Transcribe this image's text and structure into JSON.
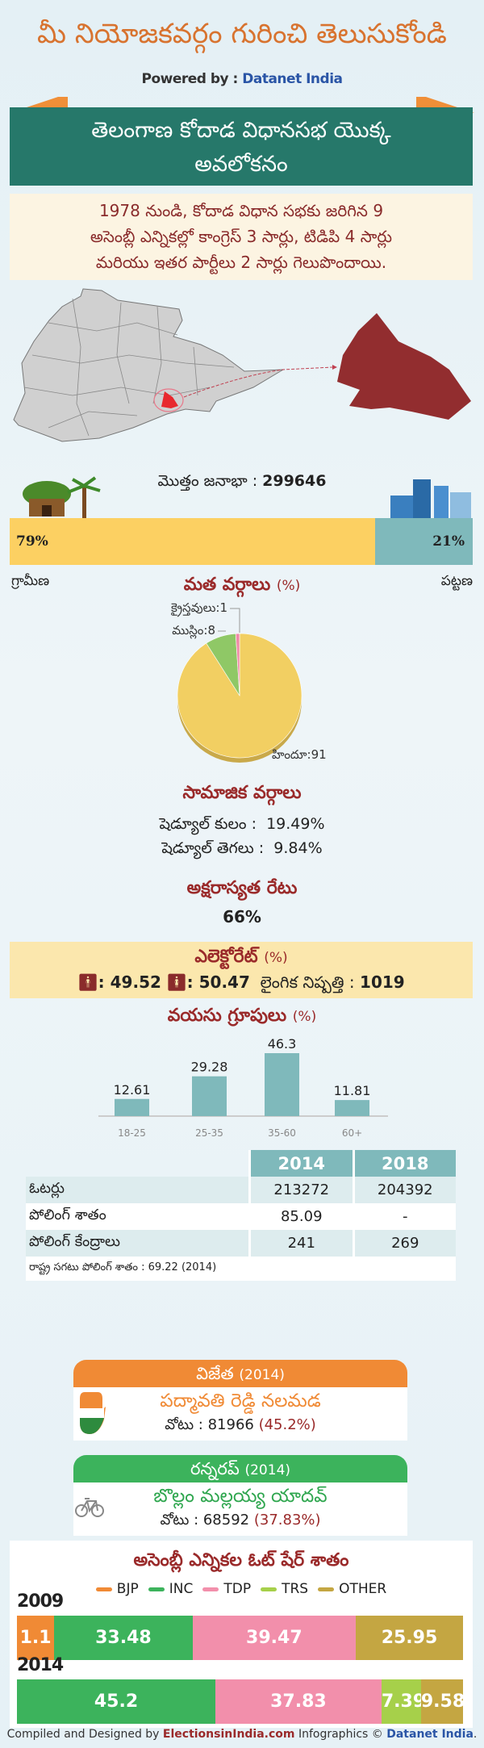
{
  "header": {
    "title": "మీ నియోజకవర్గం గురించి తెలుసుకోండి",
    "powered_label": "Powered by : ",
    "powered_brand": "Datanet India"
  },
  "banner": {
    "line1": "తెలంగాణ కోదాడ విధానసభ యొక్క",
    "line2": "అవలోకనం"
  },
  "intro": {
    "line1": "1978 నుండి, కోదాడ విధాన సభకు జరిగిన 9",
    "line2": "అసెంబ్లీ ఎన్నికల్లో కాంగ్రెస్ 3 సార్లు, టిడిపి 4 సార్లు",
    "line3": "మరియు ఇతర పార్టీలు 2 సార్లు గెలుపొందాయి."
  },
  "map": {
    "state_color": "#d0d0d0",
    "constituency_color": "#e8282d",
    "zoom_color": "#922d2f"
  },
  "population": {
    "label": "మొత్తం జనాభా : ",
    "value": "299646",
    "rural_pct": 79,
    "urban_pct": 21,
    "rural_text": "79%",
    "urban_text": "21%",
    "rural_label": "గ్రామీణ",
    "urban_label": "పట్టణ",
    "rural_color": "#fcd062",
    "urban_color": "#7fb9bb"
  },
  "religion": {
    "title": "మత వర్గాలు",
    "unit": "(%)"
  },
  "social": {
    "title": "సామాజిక వర్గాలు",
    "sc_label": "షెడ్యూల్ కులం :",
    "sc_value": "19.49%",
    "st_label": "షెడ్యూల్ తెగలు :",
    "st_value": "9.84%"
  },
  "literacy": {
    "title": "అక్షరాస్యత రేటు",
    "value": "66%"
  },
  "electorate": {
    "title": "ఎలెక్టోరేట్",
    "unit": "(%)",
    "male": ": 49.52",
    "female": ": 50.47",
    "ratio_label": "లైంగిక నిష్పత్తి :",
    "ratio_value": "1019"
  },
  "age": {
    "title": "వయసు గ్రూపులు",
    "unit": "(%)"
  },
  "table": {
    "headers": [
      "2014",
      "2018"
    ],
    "rows": [
      {
        "label": "ఓటర్లు",
        "v2014": "213272",
        "v2018": "204392"
      },
      {
        "label": "పోలింగ్ శాతం",
        "v2014": "85.09",
        "v2018": "-"
      },
      {
        "label": "పోలింగ్ కేంద్రాలు",
        "v2014": "241",
        "v2018": "269"
      }
    ],
    "note": "రాష్ట్ర సగటు పోలింగ్ శాతం : 69.22 (2014)"
  },
  "winner": {
    "title": "విజేత",
    "year": "(2014)",
    "name": "పద్మావతి రెడ్డి నలమడ",
    "votes_label": "వోటు : 81966 ",
    "votes_pct": "(45.2%)",
    "color": "#f08a35",
    "name_color": "#f08a35"
  },
  "runnerup": {
    "title": "రన్నరప్",
    "year": "(2014)",
    "name": "బొల్లం మల్లయ్య యాదవ్",
    "votes_label": "వోటు : 68592 ",
    "votes_pct": "(37.83%)",
    "color": "#3cb35c",
    "name_color": "#2ea64e"
  },
  "footer": {
    "prefix": "Compiled and Designed by ",
    "brand1": "ElectionsinIndia.com",
    "mid": " Infographics © ",
    "brand2": "Datanet India",
    "end": "."
  },
  "chart_data": [
    {
      "type": "pie",
      "title": "మత వర్గాలు (%)",
      "slices": [
        {
          "label": "హిందూ",
          "value": 91,
          "color": "#f2cf62"
        },
        {
          "label": "ముస్లిం",
          "value": 8,
          "color": "#8fc866"
        },
        {
          "label": "క్రైస్తవులు",
          "value": 1,
          "color": "#f08aa8"
        }
      ]
    },
    {
      "type": "bar",
      "title": "వయసు గ్రూపులు (%)",
      "categories": [
        "18-25",
        "25-35",
        "35-60",
        "60+"
      ],
      "values": [
        12.61,
        29.28,
        46.3,
        11.81
      ],
      "labels": [
        "12.61",
        "29.28",
        "46.3",
        "11.81"
      ],
      "color": "#7fb9bb"
    },
    {
      "type": "bar",
      "stacked": true,
      "orientation": "horizontal",
      "title": "అసెంబ్లీ ఎన్నికల ఓట్ షేర్ శాతం",
      "legend": [
        {
          "name": "BJP",
          "color": "#f08a35"
        },
        {
          "name": "INC",
          "color": "#3cb35c"
        },
        {
          "name": "TDP",
          "color": "#f28fab"
        },
        {
          "name": "TRS",
          "color": "#a6d04a"
        },
        {
          "name": "OTHER",
          "color": "#c4a642"
        }
      ],
      "categories": [
        "2009",
        "2014"
      ],
      "series": [
        {
          "name": "BJP",
          "values": [
            1.1,
            null
          ]
        },
        {
          "name": "INC",
          "values": [
            33.48,
            45.2
          ]
        },
        {
          "name": "TDP",
          "values": [
            39.47,
            37.83
          ]
        },
        {
          "name": "TRS",
          "values": [
            null,
            7.39
          ]
        },
        {
          "name": "OTHER",
          "values": [
            25.95,
            9.58
          ]
        }
      ]
    }
  ]
}
